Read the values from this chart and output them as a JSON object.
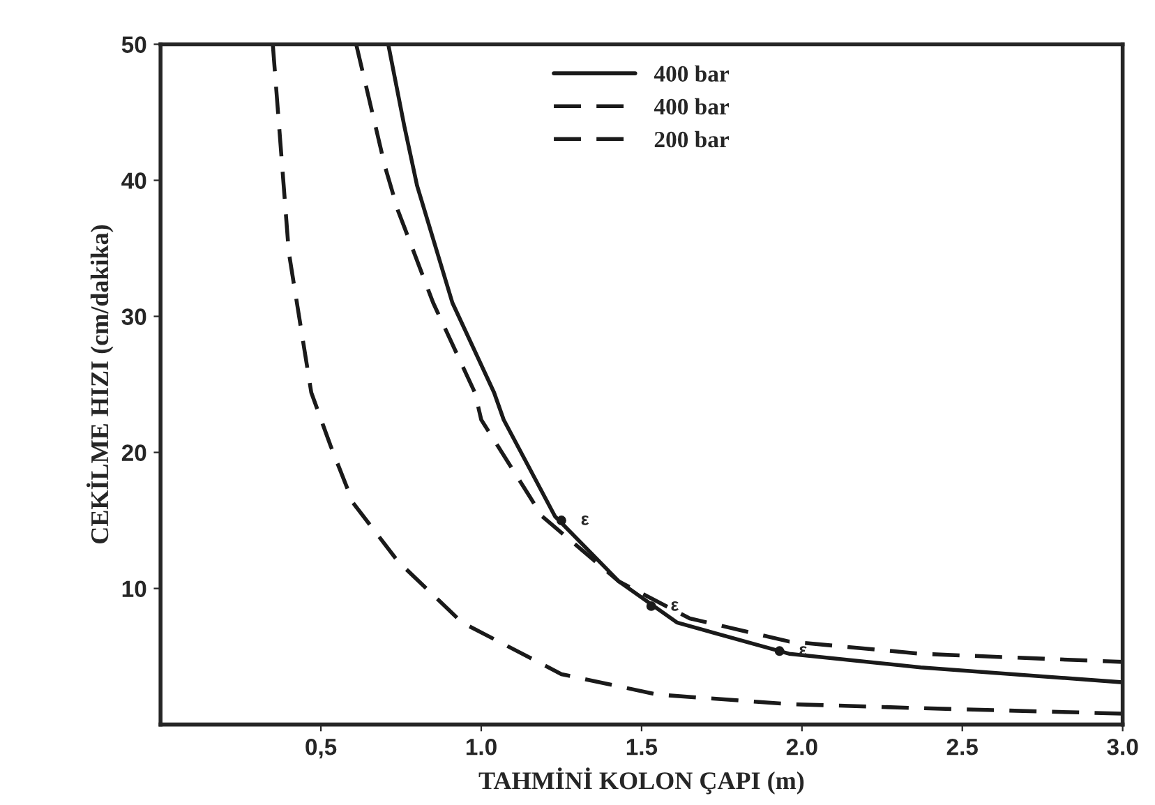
{
  "chart_data": {
    "type": "line",
    "xlabel": "TAHMİNİ KOLON ÇAPI (m)",
    "ylabel": "CEKİLME HIZI (cm/dakika)",
    "xlim": [
      0,
      3.0
    ],
    "ylim": [
      0,
      50
    ],
    "xticks": [
      {
        "value": 0.5,
        "label": "0,5"
      },
      {
        "value": 1.0,
        "label": "1.0"
      },
      {
        "value": 1.5,
        "label": "1.5"
      },
      {
        "value": 2.0,
        "label": "2.0"
      },
      {
        "value": 2.5,
        "label": "2.5"
      },
      {
        "value": 3.0,
        "label": "3.0"
      }
    ],
    "yticks": [
      10,
      20,
      30,
      40,
      50
    ],
    "grid": false,
    "legend": "top",
    "marker": "none",
    "series": [
      {
        "name": "400 bar",
        "color": "#1a1a1a",
        "line_style": "solid",
        "x": [
          0.71,
          0.76,
          0.8,
          0.91,
          1.04,
          1.07,
          1.23,
          1.43,
          1.61,
          1.96,
          2.37,
          3.0
        ],
        "values": [
          50,
          44,
          39.6,
          31,
          24.4,
          22.4,
          15.3,
          10.5,
          7.5,
          5.2,
          4.2,
          3.1
        ]
      },
      {
        "name": "400 bar",
        "color": "#1a1a1a",
        "line_style": "dashed",
        "x": [
          0.61,
          0.7,
          0.74,
          0.85,
          0.98,
          1.0,
          1.19,
          1.43,
          1.65,
          1.96,
          2.37,
          3.0
        ],
        "values": [
          50,
          41,
          37.8,
          31,
          24.4,
          22.4,
          15.3,
          10.5,
          7.8,
          6.1,
          5.2,
          4.6
        ]
      },
      {
        "name": "200 bar",
        "color": "#1a1a1a",
        "line_style": "dashed",
        "x": [
          0.35,
          0.4,
          0.47,
          0.53,
          0.6,
          0.74,
          0.94,
          1.25,
          1.55,
          1.96,
          2.37,
          3.0
        ],
        "values": [
          50,
          34.7,
          24.4,
          20.5,
          16.3,
          12,
          7.5,
          3.7,
          2.2,
          1.5,
          1.2,
          0.8
        ]
      }
    ],
    "annotations": [
      {
        "text": "ε",
        "x": 1.25,
        "y": 15
      },
      {
        "text": "ε",
        "x": 1.53,
        "y": 8.7
      },
      {
        "text": "ε",
        "x": 1.93,
        "y": 5.4
      }
    ]
  }
}
